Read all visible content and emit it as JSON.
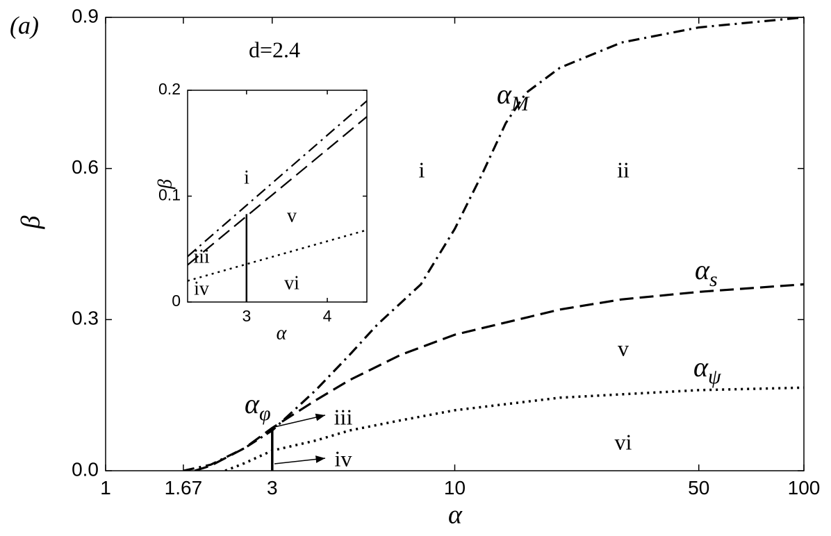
{
  "chart_data": [
    {
      "type": "line",
      "panel_label": "(a)",
      "annotation": "d=2.4",
      "xlabel": "α",
      "ylabel": "β",
      "xscale": "log",
      "xlim": [
        1,
        100
      ],
      "ylim": [
        0,
        0.9
      ],
      "xticks": [
        1,
        1.67,
        3,
        10,
        50,
        100
      ],
      "yticks": [
        {
          "value": 0,
          "label": "0.0"
        },
        0.3,
        0.6,
        0.9
      ],
      "series": [
        {
          "style": "dashdot",
          "color": "#000000",
          "label": "α",
          "label_sub": "M",
          "x": [
            1.67,
            2,
            2.5,
            3,
            4,
            5,
            6,
            8,
            10,
            12,
            14,
            16,
            20,
            30,
            50,
            100
          ],
          "values": [
            0,
            0.012,
            0.045,
            0.08,
            0.16,
            0.23,
            0.29,
            0.37,
            0.48,
            0.59,
            0.69,
            0.75,
            0.8,
            0.85,
            0.88,
            0.9
          ]
        },
        {
          "style": "dashed",
          "color": "#000000",
          "label": "α",
          "label_sub": "s",
          "x": [
            1.8,
            2,
            2.5,
            3,
            4,
            5,
            7,
            10,
            20,
            30,
            50,
            100
          ],
          "values": [
            0,
            0.01,
            0.045,
            0.085,
            0.14,
            0.18,
            0.23,
            0.27,
            0.32,
            0.34,
            0.355,
            0.37
          ]
        },
        {
          "style": "dotted",
          "color": "#000000",
          "label": "α",
          "label_sub": "ψ",
          "x": [
            2.2,
            2.5,
            3,
            4,
            5,
            7,
            10,
            20,
            50,
            100
          ],
          "values": [
            0,
            0.015,
            0.04,
            0.06,
            0.08,
            0.1,
            0.12,
            0.145,
            0.16,
            0.165
          ]
        },
        {
          "style": "solid",
          "color": "#000000",
          "label": "α",
          "label_sub": "φ",
          "x": [
            3,
            3
          ],
          "values": [
            0,
            0.08
          ]
        }
      ],
      "region_labels": [
        "i",
        "ii",
        "v",
        "vi",
        "iii",
        "iv"
      ]
    },
    {
      "type": "line",
      "xlabel": "α",
      "ylabel": "β",
      "xlim": [
        2.27,
        4.49
      ],
      "ylim": [
        0,
        0.2
      ],
      "xticks": [
        3,
        4
      ],
      "yticks": [
        0,
        0.1,
        0.2
      ],
      "series": [
        {
          "style": "dashdot",
          "color": "#000000",
          "x": [
            2.27,
            4.49
          ],
          "values": [
            0.043,
            0.19
          ]
        },
        {
          "style": "dashed",
          "color": "#000000",
          "x": [
            2.27,
            4.49
          ],
          "values": [
            0.035,
            0.175
          ]
        },
        {
          "style": "dotted",
          "color": "#000000",
          "x": [
            2.27,
            4.49
          ],
          "values": [
            0.02,
            0.068
          ]
        },
        {
          "style": "solid",
          "color": "#000000",
          "x": [
            3,
            3
          ],
          "values": [
            0,
            0.083
          ]
        }
      ],
      "region_labels": [
        "i",
        "v",
        "iii",
        "iv",
        "vi"
      ]
    }
  ]
}
